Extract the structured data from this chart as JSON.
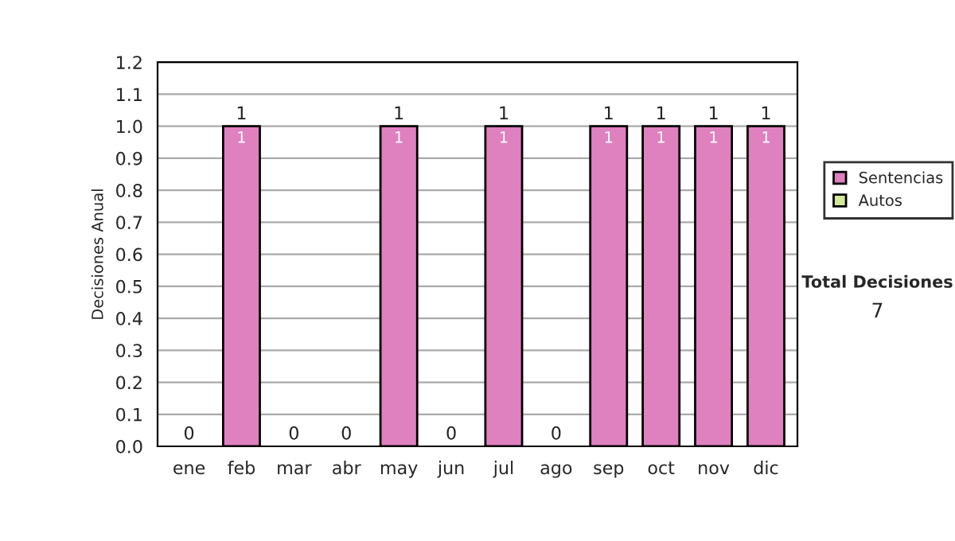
{
  "chart_data": {
    "type": "bar",
    "stacked": true,
    "ylabel": "Decisiones Anual",
    "categories": [
      "ene",
      "feb",
      "mar",
      "abr",
      "may",
      "jun",
      "jul",
      "ago",
      "sep",
      "oct",
      "nov",
      "dic"
    ],
    "series": [
      {
        "name": "Sentencias",
        "color": "#df80bf",
        "values": [
          0,
          1,
          0,
          0,
          1,
          0,
          1,
          0,
          1,
          1,
          1,
          1
        ],
        "value_labels": [
          null,
          "1",
          null,
          null,
          "1",
          null,
          "1",
          null,
          "1",
          "1",
          "1",
          "1"
        ]
      },
      {
        "name": "Autos",
        "color": "#d4e89c",
        "values": [
          0,
          0,
          0,
          0,
          0,
          0,
          0,
          0,
          0,
          0,
          0,
          0
        ]
      }
    ],
    "totals": [
      "0",
      "1",
      "0",
      "0",
      "1",
      "0",
      "1",
      "0",
      "1",
      "1",
      "1",
      "1"
    ],
    "ylim": [
      0,
      1.2
    ],
    "yticks": [
      {
        "value": 0,
        "label": "0.0"
      },
      {
        "value": 0.1,
        "label": "0.1"
      },
      {
        "value": 0.2,
        "label": "0.2"
      },
      {
        "value": 0.3,
        "label": "0.3"
      },
      {
        "value": 0.4,
        "label": "0.4"
      },
      {
        "value": 0.5,
        "label": "0.5"
      },
      {
        "value": 0.6,
        "label": "0.6"
      },
      {
        "value": 0.7,
        "label": "0.7"
      },
      {
        "value": 0.8,
        "label": "0.8"
      },
      {
        "value": 0.9,
        "label": "0.9"
      },
      {
        "value": 1,
        "label": "1.0"
      },
      {
        "value": 1.1,
        "label": "1.1"
      },
      {
        "value": 1.2,
        "label": "1.2"
      }
    ],
    "grid": "y",
    "legend": "right",
    "annotations": [
      "Total Decisiones",
      "7"
    ]
  }
}
